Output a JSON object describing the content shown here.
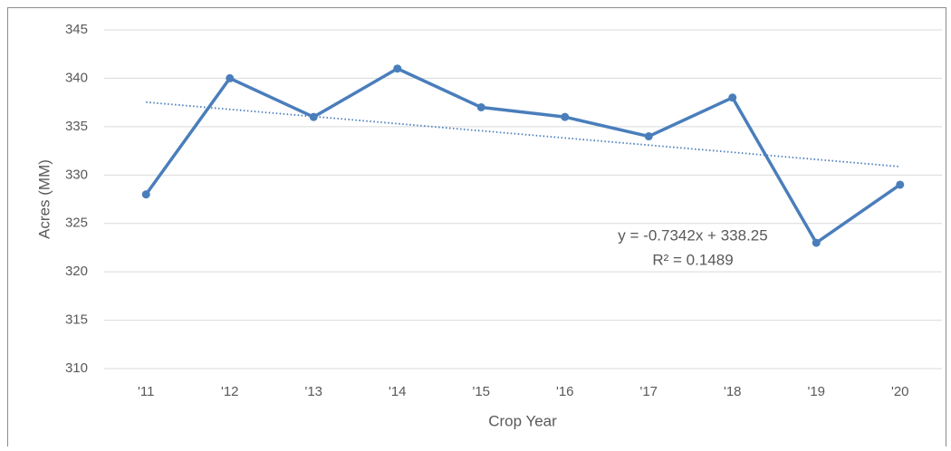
{
  "chart_data": {
    "type": "line",
    "y_label": "Acres (MM)",
    "x_label": "Crop Year",
    "categories": [
      "'11",
      "'12",
      "'13",
      "'14",
      "'15",
      "'16",
      "'17",
      "'18",
      "'19",
      "'20"
    ],
    "series": [
      {
        "name": "Acres",
        "color": "#4a7ebb",
        "values": [
          328,
          340,
          336,
          341,
          337,
          336,
          334,
          338,
          323,
          329
        ]
      }
    ],
    "ylim": [
      310,
      345
    ],
    "yticks": [
      310,
      315,
      320,
      325,
      330,
      335,
      340,
      345
    ],
    "grid": true,
    "trendline": {
      "type": "linear",
      "equation": "y = -0.7342x + 338.25",
      "r_squared": "R² = 0.1489"
    }
  }
}
